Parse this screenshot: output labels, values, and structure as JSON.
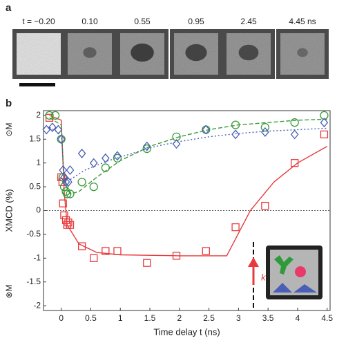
{
  "panel_a": {
    "label": "a",
    "frames": [
      "t = −0.20",
      "0.10",
      "0.55",
      "0.95",
      "2.45",
      "4.45 ns"
    ]
  },
  "chart_data": {
    "type": "scatter",
    "panel_label": "b",
    "xlabel": "Time delay t (ns)",
    "ylabel": "XMCD (%)",
    "annotations": [
      "⊙M",
      "⊗M",
      "k"
    ],
    "xlim": [
      -0.3,
      4.55
    ],
    "ylim": [
      -2.1,
      2.1
    ],
    "xticks": [
      0,
      0.5,
      1,
      1.5,
      2,
      2.5,
      3,
      3.5,
      4,
      4.5
    ],
    "yticks": [
      -2,
      -1.5,
      -1,
      -0.5,
      0,
      0.5,
      1,
      1.5,
      2
    ],
    "series": [
      {
        "color": "#e8393c",
        "marker": "square",
        "x": [
          -0.2,
          0.0,
          0.02,
          0.03,
          0.05,
          0.08,
          0.1,
          0.12,
          0.15,
          0.35,
          0.55,
          0.75,
          0.95,
          1.45,
          1.95,
          2.45,
          2.95,
          3.45,
          3.95,
          4.45
        ],
        "values": [
          1.95,
          0.7,
          0.6,
          0.15,
          -0.1,
          -0.2,
          -0.3,
          -0.25,
          -0.3,
          -0.75,
          -1.0,
          -0.85,
          -0.85,
          -1.1,
          -0.95,
          -0.85,
          -0.35,
          0.1,
          1.0,
          1.6
        ]
      },
      {
        "color": "#3a9a3a",
        "marker": "circle",
        "x": [
          -0.2,
          -0.1,
          0.0,
          0.03,
          0.05,
          0.08,
          0.1,
          0.15,
          0.35,
          0.55,
          0.75,
          0.95,
          1.45,
          1.95,
          2.45,
          2.95,
          3.45,
          3.95,
          4.45
        ],
        "values": [
          2.0,
          2.0,
          1.5,
          0.7,
          0.5,
          0.4,
          0.35,
          0.35,
          0.6,
          0.5,
          0.9,
          1.1,
          1.3,
          1.55,
          1.7,
          1.8,
          1.75,
          1.85,
          2.0
        ]
      },
      {
        "color": "#4a5fb5",
        "marker": "diamond",
        "x": [
          -0.25,
          -0.15,
          -0.05,
          0.0,
          0.03,
          0.05,
          0.08,
          0.12,
          0.15,
          0.35,
          0.55,
          0.75,
          0.95,
          1.45,
          1.95,
          2.45,
          2.95,
          3.45,
          3.95,
          4.45
        ],
        "values": [
          1.7,
          1.75,
          1.7,
          1.5,
          0.85,
          0.7,
          0.6,
          0.6,
          0.85,
          1.2,
          1.0,
          1.1,
          1.15,
          1.35,
          1.4,
          1.7,
          1.6,
          1.65,
          1.6,
          1.85
        ]
      }
    ],
    "fits": [
      {
        "color": "#e8393c",
        "dash": "none",
        "x": [
          -0.2,
          0.0,
          0.05,
          0.1,
          0.3,
          0.6,
          1.0,
          2.0,
          2.8,
          3.2,
          3.6,
          4.0,
          4.5
        ],
        "values": [
          2.0,
          1.9,
          0.4,
          -0.3,
          -0.7,
          -0.88,
          -0.93,
          -0.95,
          -0.95,
          0.0,
          0.6,
          1.0,
          1.35
        ]
      },
      {
        "color": "#3a9a3a",
        "dash": "6 3",
        "x": [
          -0.2,
          0.0,
          0.05,
          0.15,
          0.3,
          0.6,
          1.0,
          1.5,
          2.0,
          2.5,
          3.0,
          3.5,
          4.0,
          4.5
        ],
        "values": [
          1.95,
          1.8,
          0.6,
          0.35,
          0.4,
          0.7,
          1.05,
          1.35,
          1.55,
          1.7,
          1.8,
          1.85,
          1.9,
          1.92
        ]
      },
      {
        "color": "#4a5fb5",
        "dash": "2 3",
        "x": [
          -0.2,
          0.0,
          0.05,
          0.15,
          0.4,
          0.8,
          1.2,
          1.6,
          2.0,
          2.5,
          3.0,
          3.5,
          4.0,
          4.5
        ],
        "values": [
          1.75,
          1.6,
          0.75,
          0.65,
          0.85,
          1.05,
          1.2,
          1.35,
          1.45,
          1.55,
          1.62,
          1.67,
          1.7,
          1.73
        ]
      }
    ]
  }
}
